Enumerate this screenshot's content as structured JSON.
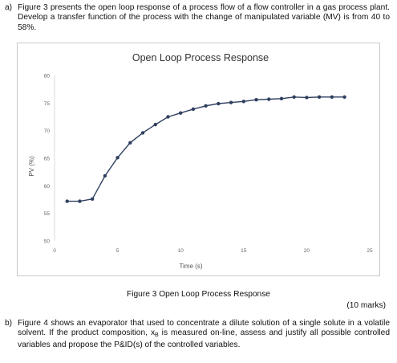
{
  "question_a": {
    "label": "a)",
    "text": "Figure 3 presents the open loop response of a process flow  of a flow controller in a gas process plant. Develop a transfer function of the process with the change of manipulated variable (MV) is from 40 to 58%."
  },
  "figure_caption": "Figure 3 Open Loop Process Response",
  "marks": "(10 marks)",
  "question_b": {
    "label": "b)",
    "text_before": "Figure 4 shows an evaporator that used to concentrate a dilute solution of a single solute in a volatile solvent. If the product composition, x",
    "subscript": "B",
    "text_after": " is measured on-line, assess and justify all possible controlled variables and propose the P&ID(s) of the controlled variables."
  },
  "chart_data": {
    "type": "line",
    "title": "Open Loop Process Response",
    "xlabel": "Time (s)",
    "ylabel": "PV (%)",
    "xlim": [
      0,
      25
    ],
    "ylim": [
      50,
      80
    ],
    "xticks": [
      "0",
      "5",
      "10",
      "15",
      "20",
      "25"
    ],
    "yticks": [
      "50",
      "55",
      "60",
      "65",
      "70",
      "75",
      "80"
    ],
    "grid": false,
    "line_color": "#2f3f5f",
    "x": [
      1,
      2,
      3,
      4,
      5,
      6,
      7,
      8,
      9,
      10,
      11,
      12,
      13,
      14,
      15,
      16,
      17,
      18,
      19,
      20,
      21,
      22,
      23
    ],
    "y": [
      57.2,
      57.2,
      57.6,
      61.8,
      65.1,
      67.8,
      69.6,
      71.1,
      72.5,
      73.2,
      73.9,
      74.5,
      74.9,
      75.1,
      75.3,
      75.6,
      75.7,
      75.8,
      76.1,
      76.0,
      76.1,
      76.1,
      76.1
    ]
  }
}
